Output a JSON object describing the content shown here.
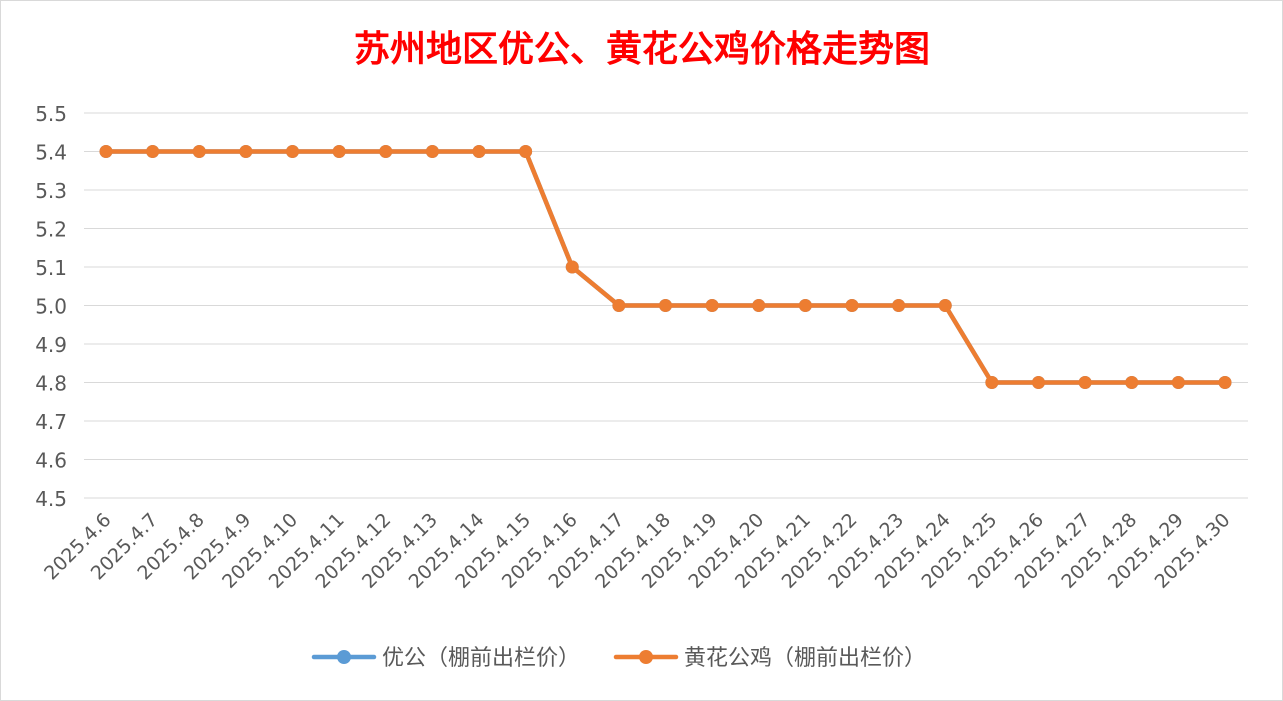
{
  "chart_data": {
    "type": "line",
    "title": "苏州地区优公、黄花公鸡价格走势图",
    "xlabel": "",
    "ylabel": "",
    "ylim": [
      4.5,
      5.5
    ],
    "yticks": [
      "5.5",
      "5.4",
      "5.3",
      "5.2",
      "5.1",
      "5.0",
      "4.9",
      "4.8",
      "4.7",
      "4.6",
      "4.5"
    ],
    "grid": true,
    "legend_position": "bottom",
    "categories": [
      "2025.4.6",
      "2025.4.7",
      "2025.4.8",
      "2025.4.9",
      "2025.4.10",
      "2025.4.11",
      "2025.4.12",
      "2025.4.13",
      "2025.4.14",
      "2025.4.15",
      "2025.4.16",
      "2025.4.17",
      "2025.4.18",
      "2025.4.19",
      "2025.4.20",
      "2025.4.21",
      "2025.4.22",
      "2025.4.23",
      "2025.4.24",
      "2025.4.25",
      "2025.4.26",
      "2025.4.27",
      "2025.4.28",
      "2025.4.29",
      "2025.4.30"
    ],
    "series": [
      {
        "name": "优公（棚前出栏价）",
        "color": "#5B9BD5",
        "values": [
          5.4,
          5.4,
          5.4,
          5.4,
          5.4,
          5.4,
          5.4,
          5.4,
          5.4,
          5.4,
          5.1,
          5.0,
          5.0,
          5.0,
          5.0,
          5.0,
          5.0,
          5.0,
          5.0,
          4.8,
          4.8,
          4.8,
          4.8,
          4.8,
          4.8
        ]
      },
      {
        "name": "黄花公鸡（棚前出栏价）",
        "color": "#ED7D31",
        "values": [
          5.4,
          5.4,
          5.4,
          5.4,
          5.4,
          5.4,
          5.4,
          5.4,
          5.4,
          5.4,
          5.1,
          5.0,
          5.0,
          5.0,
          5.0,
          5.0,
          5.0,
          5.0,
          5.0,
          4.8,
          4.8,
          4.8,
          4.8,
          4.8,
          4.8
        ]
      }
    ],
    "colors": {
      "title": "#FF0000",
      "tick": "#595959",
      "grid": "#D9D9D9",
      "legend_text": "#595959"
    }
  }
}
